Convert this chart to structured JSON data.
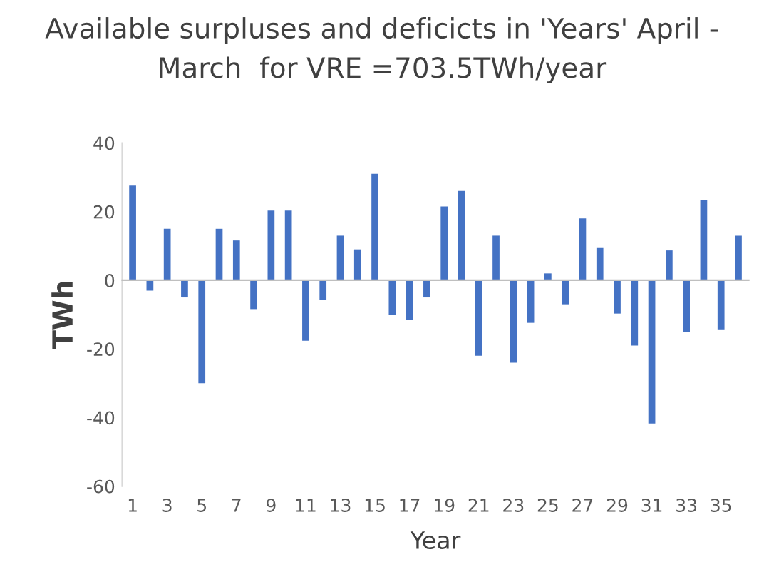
{
  "chart_data": {
    "type": "bar",
    "title": "Available surpluses and deficicts in 'Years' April -\nMarch  for VRE =703.5TWh/year",
    "xlabel": "Year",
    "ylabel": "TWh",
    "categories": [
      "1",
      null,
      "3",
      null,
      "5",
      null,
      "7",
      null,
      "9",
      null,
      "11",
      null,
      "13",
      null,
      "15",
      null,
      "17",
      null,
      "19",
      null,
      "21",
      null,
      "23",
      null,
      "25",
      null,
      "27",
      null,
      "29",
      null,
      "31",
      null,
      "33",
      null,
      "35",
      null
    ],
    "values": [
      27.6,
      -3,
      15,
      -5,
      -30,
      15,
      11.6,
      -8.4,
      20.3,
      20.3,
      -17.6,
      -5.7,
      13,
      9,
      31,
      -10,
      -11.6,
      -5,
      21.5,
      26,
      -22,
      13,
      -24,
      -12.4,
      2,
      -7,
      18,
      9.4,
      -9.7,
      -19,
      -41.7,
      8.7,
      -15,
      23.5,
      -14.3,
      13
    ],
    "color": "#4472c4",
    "ylim": [
      -60,
      40
    ],
    "yticks": [
      -60,
      -40,
      -20,
      0,
      20,
      40
    ],
    "legend": false
  }
}
